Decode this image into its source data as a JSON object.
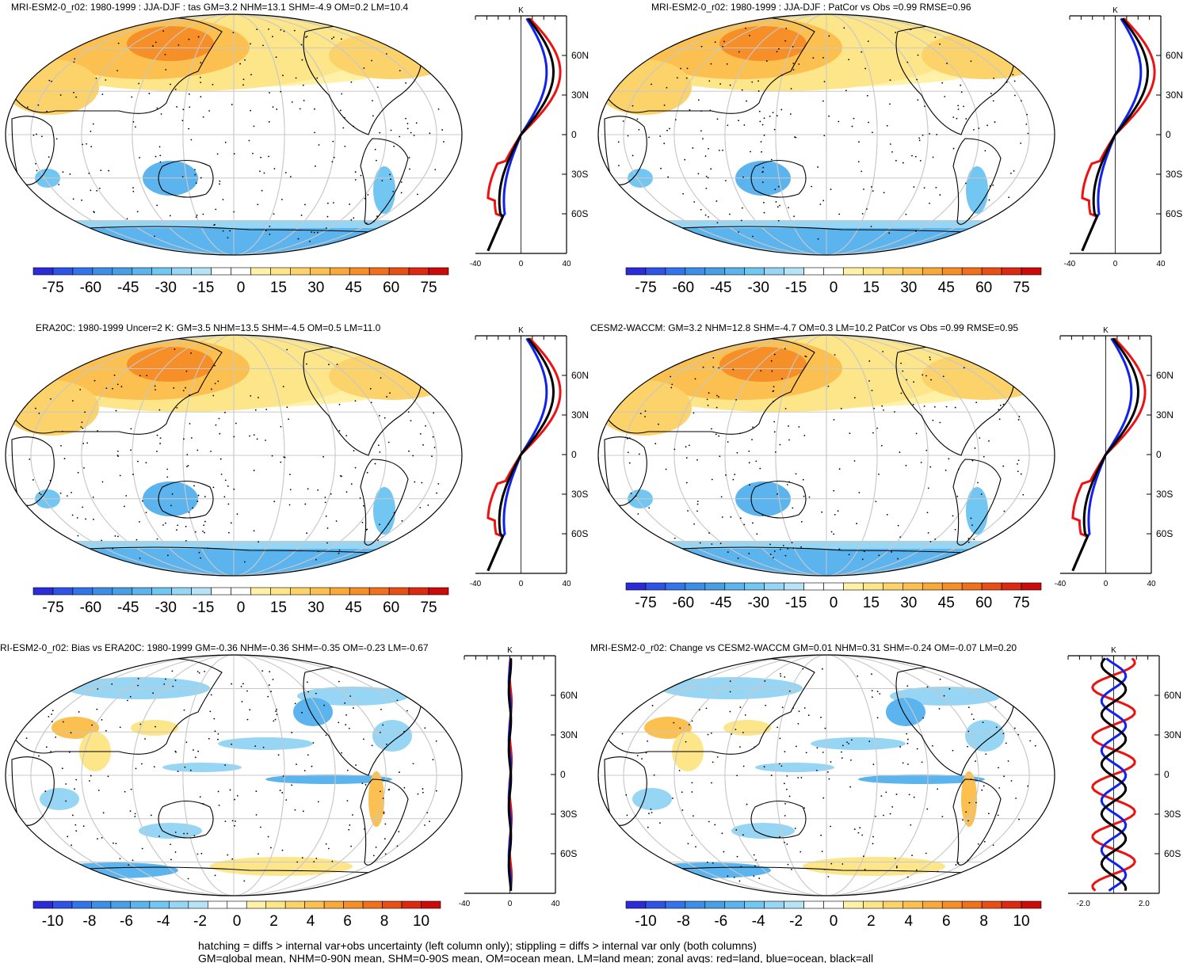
{
  "chart_data": [
    {
      "id": "p1",
      "type": "map",
      "title": "MRI-ESM2-0_r02: 1980-1999 : JJA-DJF : tas GM=3.2 NHM=13.1 SHM=-4.9 OM=0.2 LM=10.4",
      "colorbar_labels": [
        "-75",
        "-60",
        "-45",
        "-30",
        "-15",
        "0",
        "15",
        "30",
        "45",
        "60",
        "75"
      ],
      "profile": {
        "unit": "K",
        "xlim": [
          -40,
          40
        ],
        "xticks": [
          "-40",
          "0",
          "40"
        ],
        "lat_ticks": [
          "60N",
          "30N",
          "0",
          "30S",
          "60S"
        ],
        "series": [
          {
            "name": "land",
            "color": "#ee1111"
          },
          {
            "name": "ocean",
            "color": "#1122ee"
          },
          {
            "name": "all",
            "color": "#000000"
          }
        ]
      }
    },
    {
      "id": "p2",
      "type": "map",
      "title": "MRI-ESM2-0_r02: 1980-1999 : JJA-DJF : PatCor vs Obs =0.99 RMSE=0.96",
      "colorbar_labels": [
        "-75",
        "-60",
        "-45",
        "-30",
        "-15",
        "0",
        "15",
        "30",
        "45",
        "60",
        "75"
      ],
      "profile": {
        "unit": "K",
        "xlim": [
          -40,
          40
        ],
        "xticks": [
          "-40",
          "0",
          "40"
        ],
        "lat_ticks": [
          "60N",
          "30N",
          "0",
          "30S",
          "60S"
        ]
      }
    },
    {
      "id": "p3",
      "type": "map",
      "title": "ERA20C: 1980-1999 Uncer=2 K: GM=3.5 NHM=13.5 SHM=-4.5 OM=0.5 LM=11.0",
      "colorbar_labels": [
        "-75",
        "-60",
        "-45",
        "-30",
        "-15",
        "0",
        "15",
        "30",
        "45",
        "60",
        "75"
      ],
      "profile": {
        "unit": "K",
        "xlim": [
          -40,
          40
        ],
        "xticks": [
          "-40",
          "0",
          "40"
        ],
        "lat_ticks": [
          "60N",
          "30N",
          "0",
          "30S",
          "60S"
        ]
      }
    },
    {
      "id": "p4",
      "type": "map",
      "title": "CESM2-WACCM: GM=3.2 NHM=12.8 SHM=-4.7 OM=0.3 LM=10.2 PatCor vs Obs =0.99 RMSE=0.95",
      "colorbar_labels": [
        "-75",
        "-60",
        "-45",
        "-30",
        "-15",
        "0",
        "15",
        "30",
        "45",
        "60",
        "75"
      ],
      "profile": {
        "unit": "K",
        "xlim": [
          -40,
          40
        ],
        "xticks": [
          "-40",
          "0",
          "40"
        ],
        "lat_ticks": [
          "60N",
          "30N",
          "0",
          "30S",
          "60S"
        ]
      }
    },
    {
      "id": "p5",
      "type": "map",
      "title": "RI-ESM2-0_r02: Bias vs ERA20C: 1980-1999 GM=-0.36 NHM=-0.36 SHM=-0.35 OM=-0.23 LM=-0.67",
      "colorbar_labels": [
        "-10",
        "-8",
        "-6",
        "-4",
        "-2",
        "0",
        "2",
        "4",
        "6",
        "8",
        "10"
      ],
      "profile": {
        "unit": "K",
        "xlim": [
          -40,
          40
        ],
        "xticks": [
          "-40",
          "0",
          "40"
        ],
        "lat_ticks": [
          "60N",
          "30N",
          "0",
          "30S",
          "60S"
        ]
      }
    },
    {
      "id": "p6",
      "type": "map",
      "title": "MRI-ESM2-0_r02: Change vs CESM2-WACCM GM=0.01 NHM=0.31 SHM=-0.24 OM=-0.07 LM=0.20",
      "colorbar_labels": [
        "-10",
        "-8",
        "-6",
        "-4",
        "-2",
        "0",
        "2",
        "4",
        "6",
        "8",
        "10"
      ],
      "profile": {
        "unit": "K",
        "xlim": [
          -3,
          3
        ],
        "xticks": [
          "-2.0",
          "2.0"
        ],
        "lat_ticks": [
          "60N",
          "30N",
          "0",
          "30S",
          "60S"
        ]
      }
    }
  ],
  "colors": {
    "neg": [
      "#2b2bd8",
      "#2f53e6",
      "#3474ea",
      "#3c8ee6",
      "#489fe6",
      "#5cb4ee",
      "#72c6f2",
      "#96d6f4",
      "#b6e3f6"
    ],
    "pos": [
      "#fff2a8",
      "#fde58a",
      "#fcd26a",
      "#fbc04f",
      "#f9a83a",
      "#f68f28",
      "#f0701c",
      "#e84f14",
      "#dc2a10",
      "#cc0a0a"
    ]
  },
  "footer": {
    "line1": "hatching = diffs > internal var+obs uncertainty (left column only); stippling = diffs > internal var only (both columns)",
    "line2": "GM=global mean, NHM=0-90N mean, SHM=0-90S mean, OM=ocean mean, LM=land mean; zonal avgs: red=land, blue=ocean, black=all"
  }
}
